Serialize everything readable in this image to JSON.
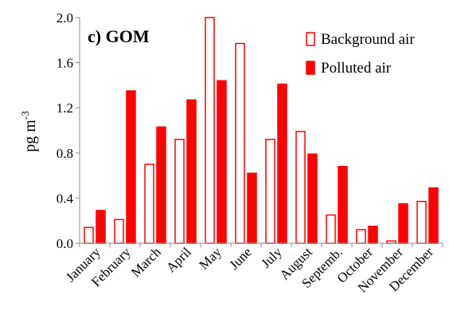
{
  "chart_data": {
    "type": "bar",
    "title": "c) GOM",
    "xlabel": "",
    "ylabel": "pg m",
    "ylabel_superscript": "-3",
    "ylim": [
      0,
      2.0
    ],
    "yticks": [
      "0.0",
      "0.4",
      "0.8",
      "1.2",
      "1.6",
      "2.0"
    ],
    "grid": false,
    "legend_position": "top-right",
    "categories": [
      "January",
      "February",
      "March",
      "April",
      "May",
      "June",
      "July",
      "August",
      "Septemb.",
      "October",
      "November",
      "December"
    ],
    "series": [
      {
        "name": "Background air",
        "style": "outline",
        "color": "#ff0000",
        "values": [
          0.14,
          0.21,
          0.7,
          0.92,
          2.0,
          1.77,
          0.92,
          0.99,
          0.25,
          0.12,
          0.02,
          0.37
        ]
      },
      {
        "name": "Polluted air",
        "style": "filled",
        "color": "#ff0000",
        "values": [
          0.29,
          1.35,
          1.03,
          1.27,
          1.44,
          0.62,
          1.41,
          0.79,
          0.68,
          0.15,
          0.35,
          0.49
        ]
      }
    ]
  }
}
